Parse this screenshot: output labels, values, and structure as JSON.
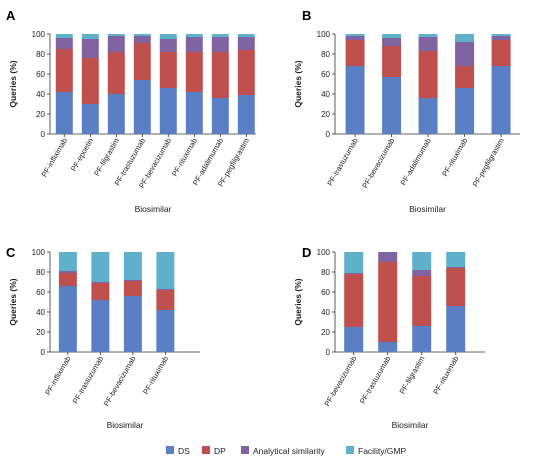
{
  "colors": {
    "DS": "#5b7fc4",
    "DP": "#c0504d",
    "Analytical similarity": "#8064a2",
    "Facility/GMP": "#5fb1cb"
  },
  "legend": {
    "items": [
      "DS",
      "DP",
      "Analytical similarity",
      "Facility/GMP"
    ]
  },
  "chart_data": [
    {
      "panel": "A",
      "type": "bar",
      "stacked": true,
      "xlabel": "Biosimilar",
      "ylabel": "Queries (%)",
      "ylim": [
        0,
        100
      ],
      "yticks": [
        0,
        20,
        40,
        60,
        80,
        100
      ],
      "categories": [
        "PF-infliximab",
        "PF-epoetin",
        "PF-filgrastim",
        "PF-trastuzumab",
        "PF-bevacizumab",
        "PF-rituximab",
        "PF-adalimumab",
        "PF-pegfilgrastim"
      ],
      "series": [
        {
          "name": "DS",
          "values": [
            42,
            30,
            40,
            54,
            46,
            42,
            36,
            39
          ]
        },
        {
          "name": "DP",
          "values": [
            43,
            46,
            42,
            37,
            36,
            40,
            46,
            45
          ]
        },
        {
          "name": "Analytical similarity",
          "values": [
            11,
            19,
            16,
            7,
            13,
            15,
            15,
            13
          ]
        },
        {
          "name": "Facility/GMP",
          "values": [
            4,
            5,
            2,
            2,
            5,
            3,
            3,
            3
          ]
        }
      ]
    },
    {
      "panel": "B",
      "type": "bar",
      "stacked": true,
      "xlabel": "Biosimilar",
      "ylabel": "Queries (%)",
      "ylim": [
        0,
        100
      ],
      "yticks": [
        0,
        20,
        40,
        60,
        80,
        100
      ],
      "categories": [
        "PF-trastuzumab",
        "PF-bevacizumab",
        "PF-adalimumab",
        "PF-rituximab",
        "PF-pegfilgrastim"
      ],
      "series": [
        {
          "name": "DS",
          "values": [
            68,
            57,
            36,
            46,
            68
          ]
        },
        {
          "name": "DP",
          "values": [
            26,
            31,
            47,
            22,
            26
          ]
        },
        {
          "name": "Analytical similarity",
          "values": [
            4,
            8,
            14,
            24,
            4
          ]
        },
        {
          "name": "Facility/GMP",
          "values": [
            2,
            4,
            3,
            8,
            2
          ]
        }
      ]
    },
    {
      "panel": "C",
      "type": "bar",
      "stacked": true,
      "xlabel": "Biosimilar",
      "ylabel": "Queries (%)",
      "ylim": [
        0,
        100
      ],
      "yticks": [
        0,
        20,
        40,
        60,
        80,
        100
      ],
      "categories": [
        "PF-infliximab",
        "PF-trastuzumab",
        "PF-bevacizumab",
        "PF-rituximab"
      ],
      "series": [
        {
          "name": "DS",
          "values": [
            66,
            52,
            56,
            42
          ]
        },
        {
          "name": "DP",
          "values": [
            13,
            17,
            15,
            20
          ]
        },
        {
          "name": "Analytical similarity",
          "values": [
            2,
            1,
            1,
            1
          ]
        },
        {
          "name": "Facility/GMP",
          "values": [
            19,
            30,
            28,
            37
          ]
        }
      ]
    },
    {
      "panel": "D",
      "type": "bar",
      "stacked": true,
      "xlabel": "Biosimilar",
      "ylabel": "Queries (%)",
      "ylim": [
        0,
        100
      ],
      "yticks": [
        0,
        20,
        40,
        60,
        80,
        100
      ],
      "categories": [
        "PF-bevacizumab",
        "PF-trastuzumab",
        "PF-filgrastim",
        "PF-rituximab"
      ],
      "series": [
        {
          "name": "DS",
          "values": [
            25,
            10,
            26,
            46
          ]
        },
        {
          "name": "DP",
          "values": [
            53,
            80,
            50,
            38
          ]
        },
        {
          "name": "Analytical similarity",
          "values": [
            1,
            10,
            6,
            1
          ]
        },
        {
          "name": "Facility/GMP",
          "values": [
            21,
            0,
            18,
            15
          ]
        }
      ]
    }
  ]
}
